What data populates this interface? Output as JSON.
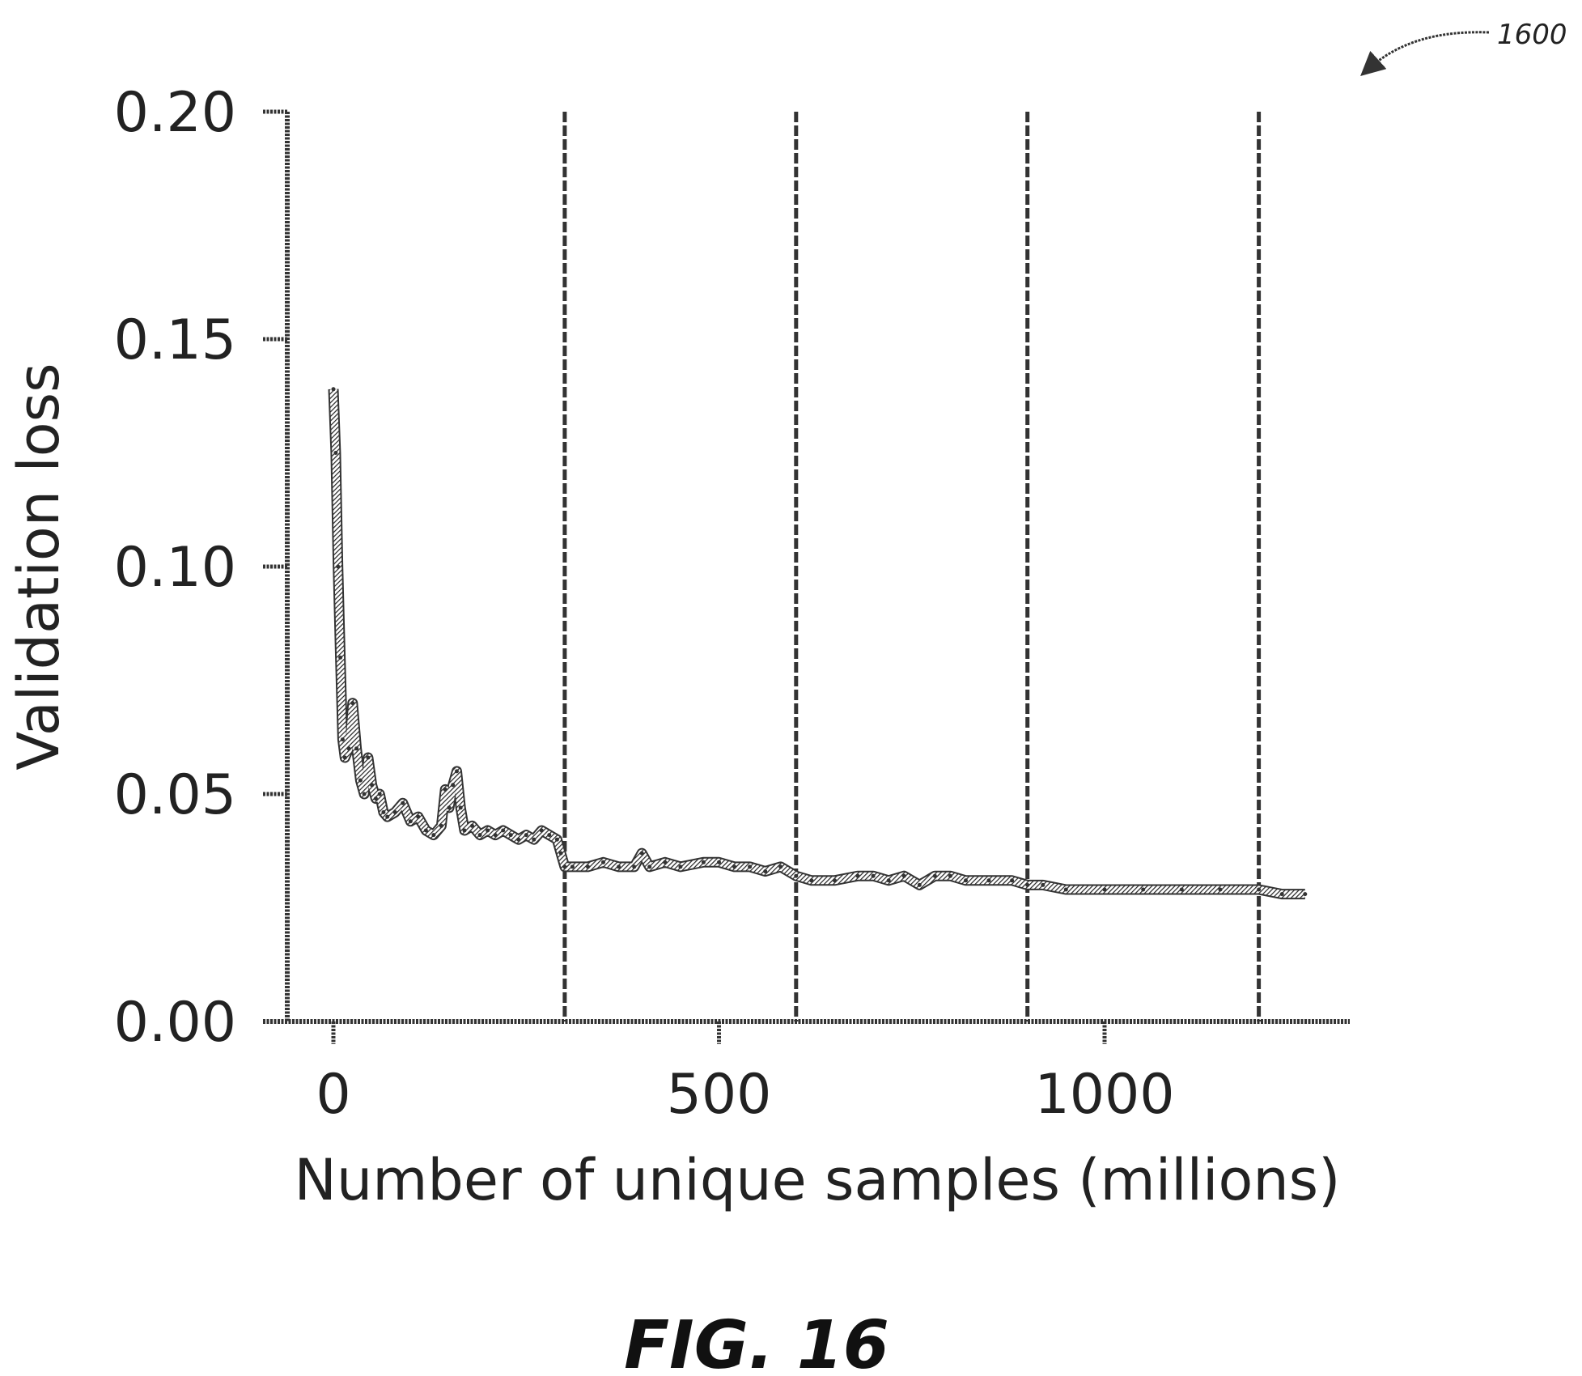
{
  "reference_numeral": "1600",
  "figure_caption": "FIG. 16",
  "chart_data": {
    "type": "line",
    "xlabel": "Number of unique samples (millions)",
    "ylabel": "Validation loss",
    "xlim": [
      -90,
      1320
    ],
    "ylim": [
      0,
      0.2
    ],
    "xticks": [
      0,
      500,
      1000
    ],
    "yticks": [
      0.0,
      0.05,
      0.1,
      0.15,
      0.2
    ],
    "xtick_labels": [
      "0",
      "500",
      "1000"
    ],
    "ytick_labels": [
      "0.00",
      "0.05",
      "0.10",
      "0.15",
      "0.20"
    ],
    "vertical_dashed_lines_x": [
      300,
      600,
      900,
      1200
    ],
    "grid": false,
    "legend": "none",
    "series": [
      {
        "x": [
          0,
          3,
          6,
          9,
          12,
          15,
          20,
          25,
          30,
          35,
          40,
          45,
          50,
          55,
          60,
          65,
          70,
          80,
          90,
          100,
          110,
          120,
          130,
          140,
          145,
          150,
          155,
          160,
          165,
          170,
          180,
          190,
          200,
          210,
          220,
          230,
          240,
          250,
          260,
          270,
          280,
          290,
          295,
          300,
          310,
          330,
          350,
          370,
          390,
          400,
          410,
          430,
          450,
          480,
          500,
          520,
          540,
          560,
          580,
          600,
          620,
          650,
          680,
          700,
          720,
          740,
          760,
          780,
          800,
          820,
          850,
          880,
          900,
          920,
          950,
          1000,
          1050,
          1100,
          1150,
          1200,
          1230,
          1260
        ],
        "y": [
          0.139,
          0.125,
          0.1,
          0.08,
          0.062,
          0.058,
          0.06,
          0.07,
          0.06,
          0.053,
          0.05,
          0.058,
          0.052,
          0.049,
          0.05,
          0.046,
          0.045,
          0.046,
          0.048,
          0.044,
          0.045,
          0.042,
          0.041,
          0.043,
          0.051,
          0.047,
          0.052,
          0.055,
          0.047,
          0.042,
          0.043,
          0.041,
          0.042,
          0.041,
          0.042,
          0.041,
          0.04,
          0.041,
          0.04,
          0.042,
          0.041,
          0.04,
          0.037,
          0.034,
          0.034,
          0.034,
          0.035,
          0.034,
          0.034,
          0.037,
          0.034,
          0.035,
          0.034,
          0.035,
          0.035,
          0.034,
          0.034,
          0.033,
          0.034,
          0.032,
          0.031,
          0.031,
          0.032,
          0.032,
          0.031,
          0.032,
          0.03,
          0.032,
          0.032,
          0.031,
          0.031,
          0.031,
          0.03,
          0.03,
          0.029,
          0.029,
          0.029,
          0.029,
          0.029,
          0.029,
          0.028,
          0.028
        ]
      }
    ]
  }
}
